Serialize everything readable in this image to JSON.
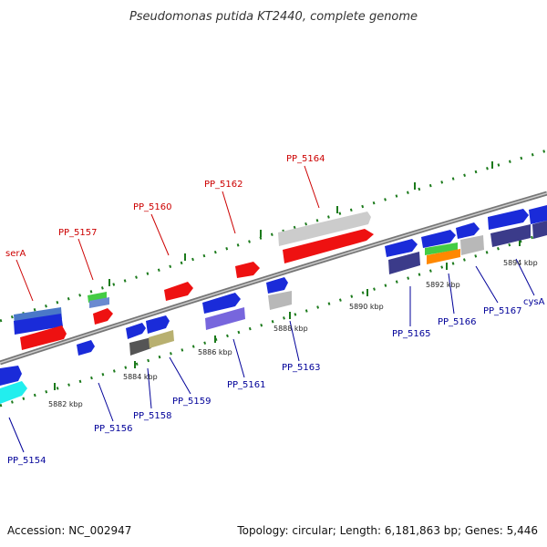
{
  "title": "Pseudomonas putida KT2440, complete genome",
  "footer": {
    "accession": "Accession: NC_002947",
    "topology": "Topology: circular; Length: 6,181,863 bp; Genes: 5,446"
  },
  "scale_labels": [
    "5882 kbp",
    "5884 kbp",
    "5886 kbp",
    "5888 kbp",
    "5890 kbp",
    "5892 kbp",
    "5894 kbp"
  ],
  "colors": {
    "backbone": "#8c8c8c",
    "tick": "#1b7a1b",
    "label_top": "#cc0000",
    "label_bottom": "#000099"
  },
  "gene_labels": [
    {
      "text": "serA",
      "strand": "top"
    },
    {
      "text": "PP_5157",
      "strand": "top"
    },
    {
      "text": "PP_5160",
      "strand": "top"
    },
    {
      "text": "PP_5162",
      "strand": "top"
    },
    {
      "text": "PP_5164",
      "strand": "top"
    },
    {
      "text": "PP_5154",
      "strand": "bottom"
    },
    {
      "text": "PP_5156",
      "strand": "bottom"
    },
    {
      "text": "PP_5158",
      "strand": "bottom"
    },
    {
      "text": "PP_5159",
      "strand": "bottom"
    },
    {
      "text": "PP_5161",
      "strand": "bottom"
    },
    {
      "text": "PP_5163",
      "strand": "bottom"
    },
    {
      "text": "PP_5165",
      "strand": "bottom"
    },
    {
      "text": "PP_5166",
      "strand": "bottom"
    },
    {
      "text": "PP_5167",
      "strand": "bottom"
    },
    {
      "text": "cysA",
      "strand": "bottom"
    }
  ]
}
